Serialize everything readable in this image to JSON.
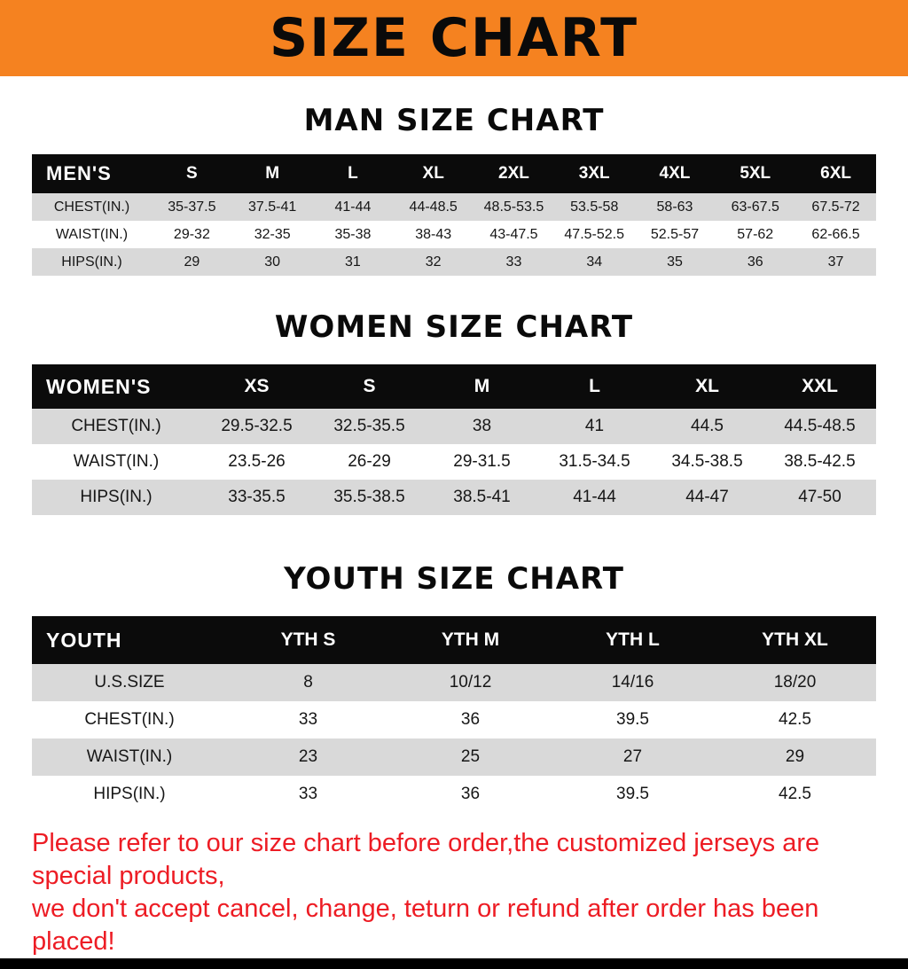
{
  "banner": {
    "title": "SIZE CHART"
  },
  "colors": {
    "banner_bg": "#f58220",
    "table_header_bg": "#0b0b0b",
    "row_alt_gray": "#d9d9d9",
    "disclaimer_red": "#ed1c24"
  },
  "sections": {
    "men": {
      "heading": "MAN SIZE CHART",
      "table": {
        "header": [
          "MEN'S",
          "S",
          "M",
          "L",
          "XL",
          "2XL",
          "3XL",
          "4XL",
          "5XL",
          "6XL"
        ],
        "rows": [
          {
            "label": "CHEST(IN.)",
            "values": [
              "35-37.5",
              "37.5-41",
              "41-44",
              "44-48.5",
              "48.5-53.5",
              "53.5-58",
              "58-63",
              "63-67.5",
              "67.5-72"
            ]
          },
          {
            "label": "WAIST(IN.)",
            "values": [
              "29-32",
              "32-35",
              "35-38",
              "38-43",
              "43-47.5",
              "47.5-52.5",
              "52.5-57",
              "57-62",
              "62-66.5"
            ]
          },
          {
            "label": "HIPS(IN.)",
            "values": [
              "29",
              "30",
              "31",
              "32",
              "33",
              "34",
              "35",
              "36",
              "37"
            ]
          }
        ]
      }
    },
    "women": {
      "heading": "WOMEN SIZE CHART",
      "table": {
        "header": [
          "WOMEN'S",
          "XS",
          "S",
          "M",
          "L",
          "XL",
          "XXL"
        ],
        "rows": [
          {
            "label": "CHEST(IN.)",
            "values": [
              "29.5-32.5",
              "32.5-35.5",
              "38",
              "41",
              "44.5",
              "44.5-48.5"
            ]
          },
          {
            "label": "WAIST(IN.)",
            "values": [
              "23.5-26",
              "26-29",
              "29-31.5",
              "31.5-34.5",
              "34.5-38.5",
              "38.5-42.5"
            ]
          },
          {
            "label": "HIPS(IN.)",
            "values": [
              "33-35.5",
              "35.5-38.5",
              "38.5-41",
              "41-44",
              "44-47",
              "47-50"
            ]
          }
        ]
      }
    },
    "youth": {
      "heading": "YOUTH SIZE CHART",
      "table": {
        "header": [
          "YOUTH",
          "YTH S",
          "YTH M",
          "YTH L",
          "YTH XL"
        ],
        "rows": [
          {
            "label": "U.S.SIZE",
            "values": [
              "8",
              "10/12",
              "14/16",
              "18/20"
            ]
          },
          {
            "label": "CHEST(IN.)",
            "values": [
              "33",
              "36",
              "39.5",
              "42.5"
            ]
          },
          {
            "label": "WAIST(IN.)",
            "values": [
              "23",
              "25",
              "27",
              "29"
            ]
          },
          {
            "label": "HIPS(IN.)",
            "values": [
              "33",
              "36",
              "39.5",
              "42.5"
            ]
          }
        ]
      }
    }
  },
  "disclaimer": {
    "line1": "Please refer to our size chart before order,the customized jerseys are special products,",
    "line2": "we don't accept cancel, change, teturn or refund after order has been placed!"
  }
}
